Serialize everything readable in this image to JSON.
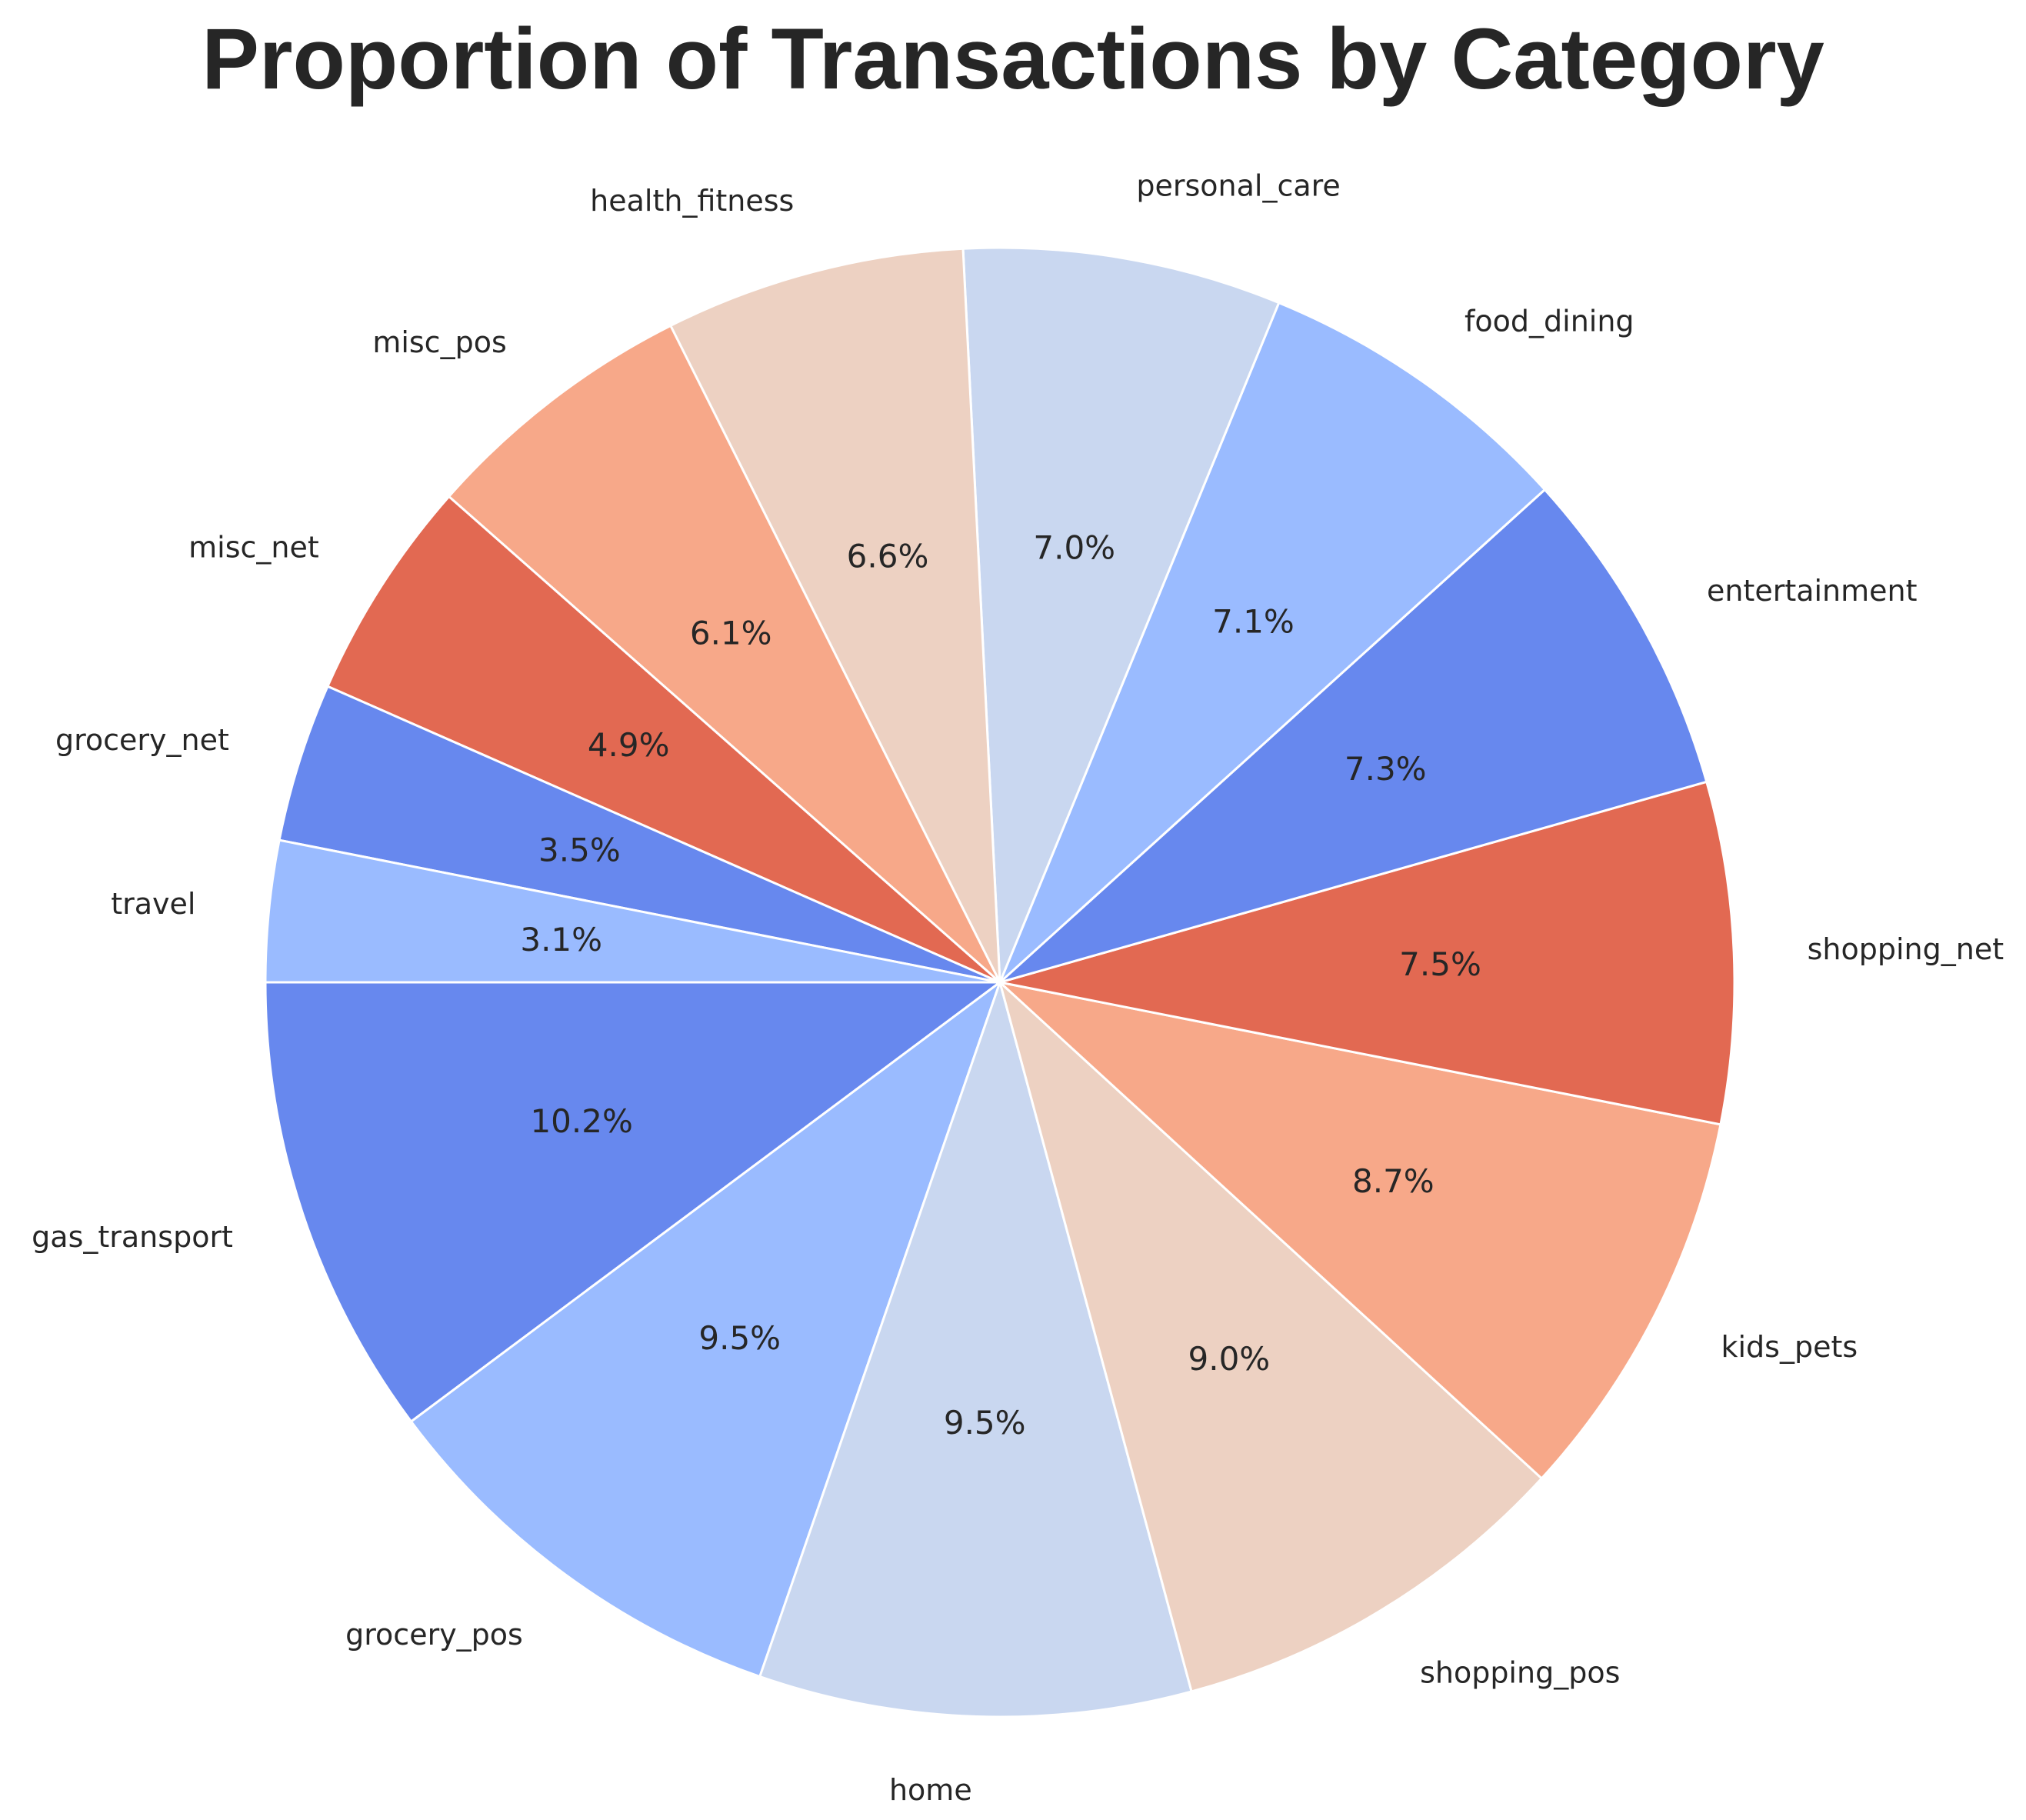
{
  "chart_data": {
    "type": "pie",
    "title": "Proportion of Transactions by Category",
    "start_angle_deg": 180,
    "direction": "counterclockwise",
    "slices": [
      {
        "label": "gas_transport",
        "value": 10.2,
        "pct_label": "10.2%",
        "color": "#6788ee"
      },
      {
        "label": "grocery_pos",
        "value": 9.5,
        "pct_label": "9.5%",
        "color": "#9abbff"
      },
      {
        "label": "home",
        "value": 9.5,
        "pct_label": "9.5%",
        "color": "#c9d7f0"
      },
      {
        "label": "shopping_pos",
        "value": 9.0,
        "pct_label": "9.0%",
        "color": "#edd1c2"
      },
      {
        "label": "kids_pets",
        "value": 8.7,
        "pct_label": "8.7%",
        "color": "#f7a889"
      },
      {
        "label": "shopping_net",
        "value": 7.5,
        "pct_label": "7.5%",
        "color": "#e26952"
      },
      {
        "label": "entertainment",
        "value": 7.3,
        "pct_label": "7.3%",
        "color": "#6788ee"
      },
      {
        "label": "food_dining",
        "value": 7.1,
        "pct_label": "7.1%",
        "color": "#9abbff"
      },
      {
        "label": "personal_care",
        "value": 7.0,
        "pct_label": "7.0%",
        "color": "#c9d7f0"
      },
      {
        "label": "health_fitness",
        "value": 6.6,
        "pct_label": "6.6%",
        "color": "#edd1c2"
      },
      {
        "label": "misc_pos",
        "value": 6.1,
        "pct_label": "6.1%",
        "color": "#f7a889"
      },
      {
        "label": "misc_net",
        "value": 4.9,
        "pct_label": "4.9%",
        "color": "#e26952"
      },
      {
        "label": "grocery_net",
        "value": 3.5,
        "pct_label": "3.5%",
        "color": "#6788ee"
      },
      {
        "label": "travel",
        "value": 3.1,
        "pct_label": "3.1%",
        "color": "#9abbff"
      }
    ]
  }
}
